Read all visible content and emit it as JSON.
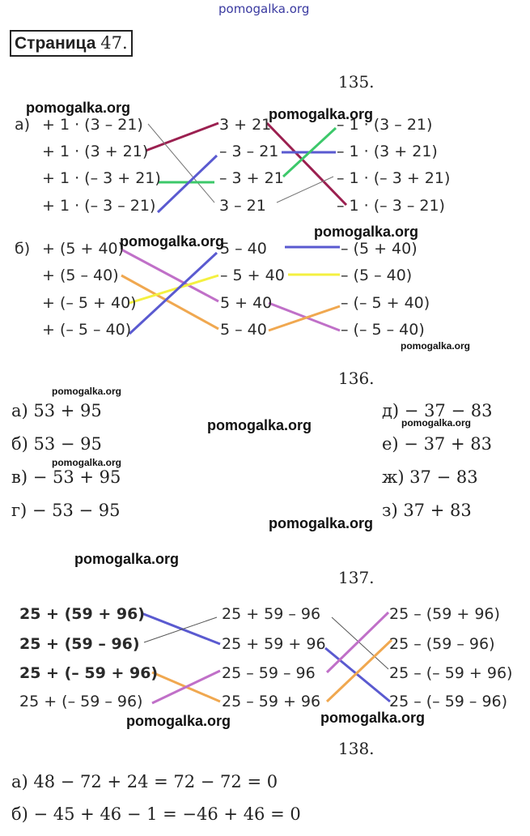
{
  "watermark_top": "pomogalka.org",
  "watermark": "pomogalka.org",
  "page_title": {
    "word": "Страница",
    "number": "47."
  },
  "ex135": {
    "number": "135.",
    "a": {
      "label": "а)",
      "left": [
        "+ 1 · (3 – 21)",
        "+ 1 · (3 + 21)",
        "+ 1 · (– 3 + 21)",
        "+ 1 · (– 3 – 21)"
      ],
      "mid": [
        "3 + 21",
        "– 3 – 21",
        "– 3 + 21",
        "3 – 21"
      ],
      "right": [
        "– 1 · (3 – 21)",
        "– 1 · (3 + 21)",
        "– 1 · (– 3 + 21)",
        "– 1 · (– 3 – 21)"
      ]
    },
    "b": {
      "label": "б)",
      "left": [
        "+ (5 + 40)",
        "+ (5 – 40)",
        "+ (– 5 + 40)",
        "+ (– 5 – 40)"
      ],
      "mid": [
        "5 – 40",
        "– 5 + 40",
        "5 + 40",
        "5 – 40"
      ],
      "right": [
        "– (5 + 40)",
        "– (5 – 40)",
        "– (– 5 + 40)",
        "– (– 5 – 40)"
      ]
    }
  },
  "ex136": {
    "number": "136.",
    "items": [
      "а) 53 + 95",
      "б) 53 − 95",
      "в) − 53 + 95",
      "г) − 53 − 95",
      "д) − 37 − 83",
      "е) − 37 + 83",
      "ж) 37 − 83",
      "з) 37 + 83"
    ]
  },
  "ex137": {
    "number": "137.",
    "left": [
      "25 + (59 + 96)",
      "25 + (59 – 96)",
      "25 + (– 59 + 96)",
      "25 + (– 59 – 96)"
    ],
    "mid": [
      "25 + 59 – 96",
      "25 + 59 + 96",
      "25 – 59 – 96",
      "25 – 59 + 96"
    ],
    "right": [
      "25 – (59 + 96)",
      "25 – (59 – 96)",
      "25 – (– 59 + 96)",
      "25 – (– 59 – 96)"
    ]
  },
  "ex138": {
    "number": "138.",
    "items": [
      "а) 48 − 72 + 24 = 72 − 72 = 0",
      "б) − 45 + 46 − 1 = −46 + 46 = 0"
    ]
  },
  "colors": {
    "maroon": "#9b2050",
    "blue": "#5a5ad0",
    "green": "#3cc86a",
    "gray": "#777777",
    "magenta": "#c070c8",
    "orange": "#f0a850",
    "yellow": "#f4f040"
  }
}
